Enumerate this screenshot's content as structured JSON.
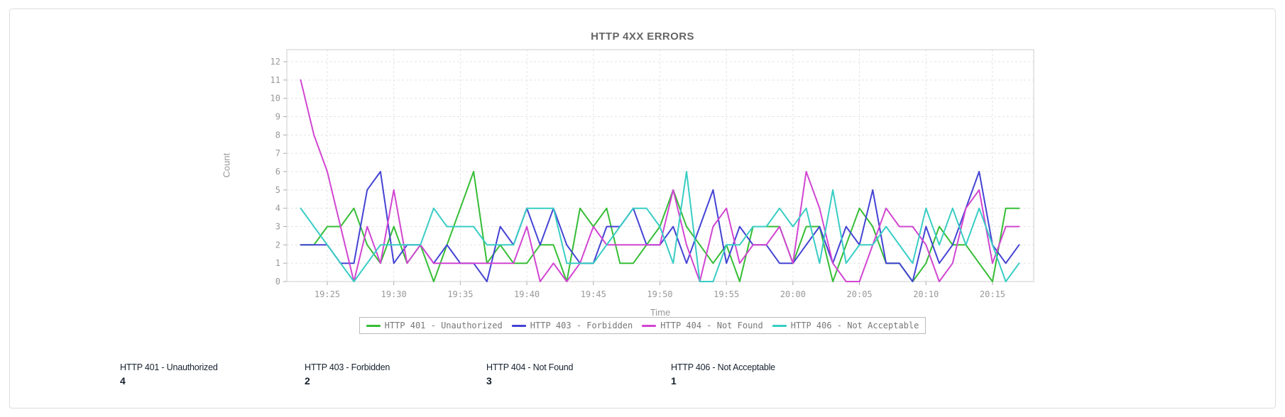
{
  "card": {
    "title": "HTTP 4XX ERRORS"
  },
  "chart_data": {
    "type": "line",
    "title": "HTTP 4XX ERRORS",
    "xlabel": "Time",
    "ylabel": "Count",
    "ylim": [
      0,
      12
    ],
    "grid": true,
    "legend_position": "bottom",
    "y_ticks": [
      0,
      1,
      2,
      3,
      4,
      5,
      6,
      7,
      8,
      9,
      10,
      11,
      12
    ],
    "x_ticks": [
      "19:25",
      "19:30",
      "19:35",
      "19:40",
      "19:45",
      "19:50",
      "19:55",
      "20:00",
      "20:05",
      "20:10",
      "20:15"
    ],
    "x": [
      "19:23",
      "19:24",
      "19:25",
      "19:26",
      "19:27",
      "19:28",
      "19:29",
      "19:30",
      "19:31",
      "19:32",
      "19:33",
      "19:34",
      "19:35",
      "19:36",
      "19:37",
      "19:38",
      "19:39",
      "19:40",
      "19:41",
      "19:42",
      "19:43",
      "19:44",
      "19:45",
      "19:46",
      "19:47",
      "19:48",
      "19:49",
      "19:50",
      "19:51",
      "19:52",
      "19:53",
      "19:54",
      "19:55",
      "19:56",
      "19:57",
      "19:58",
      "19:59",
      "20:00",
      "20:01",
      "20:02",
      "20:03",
      "20:04",
      "20:05",
      "20:06",
      "20:07",
      "20:08",
      "20:09",
      "20:10",
      "20:11",
      "20:12",
      "20:13",
      "20:14",
      "20:15",
      "20:16",
      "20:17"
    ],
    "series": [
      {
        "name": "HTTP 401 - Unauthorized",
        "color": "#35bd35",
        "values": [
          2,
          2,
          3,
          3,
          4,
          2,
          1,
          3,
          1,
          2,
          0,
          2,
          4,
          6,
          1,
          2,
          1,
          1,
          2,
          2,
          0,
          4,
          3,
          4,
          1,
          1,
          2,
          3,
          5,
          3,
          2,
          1,
          2,
          0,
          3,
          3,
          3,
          1,
          3,
          3,
          0,
          2,
          4,
          3,
          1,
          1,
          0,
          1,
          3,
          2,
          2,
          1,
          0,
          4,
          4
        ]
      },
      {
        "name": "HTTP 403 - Forbidden",
        "color": "#4343d4",
        "values": [
          2,
          2,
          2,
          1,
          1,
          5,
          6,
          1,
          2,
          2,
          1,
          2,
          1,
          1,
          0,
          3,
          2,
          4,
          2,
          4,
          2,
          1,
          1,
          3,
          3,
          4,
          2,
          2,
          3,
          1,
          3,
          5,
          1,
          3,
          2,
          2,
          1,
          1,
          2,
          3,
          1,
          3,
          2,
          5,
          1,
          1,
          0,
          3,
          1,
          2,
          4,
          6,
          2,
          1,
          2
        ]
      },
      {
        "name": "HTTP 404 - Not Found",
        "color": "#d145d1",
        "values": [
          11,
          8,
          6,
          3,
          0,
          3,
          1,
          5,
          1,
          2,
          1,
          1,
          1,
          1,
          1,
          1,
          1,
          3,
          0,
          1,
          0,
          1,
          3,
          2,
          2,
          2,
          2,
          2,
          5,
          2,
          0,
          3,
          4,
          1,
          2,
          2,
          3,
          1,
          6,
          4,
          1,
          0,
          0,
          2,
          4,
          3,
          3,
          2,
          0,
          1,
          4,
          5,
          1,
          3,
          3
        ]
      },
      {
        "name": "HTTP 406 - Not Acceptable",
        "color": "#38cdc4",
        "values": [
          4,
          3,
          2,
          1,
          0,
          1,
          2,
          2,
          2,
          2,
          4,
          3,
          3,
          3,
          2,
          2,
          2,
          4,
          4,
          4,
          1,
          1,
          1,
          2,
          3,
          4,
          4,
          3,
          1,
          6,
          0,
          0,
          2,
          2,
          3,
          3,
          4,
          3,
          4,
          1,
          5,
          1,
          2,
          2,
          3,
          2,
          1,
          4,
          2,
          4,
          2,
          4,
          2,
          0,
          1
        ]
      }
    ]
  },
  "summary": {
    "items": [
      {
        "label": "HTTP 401 - Unauthorized",
        "value": "4"
      },
      {
        "label": "HTTP 403 - Forbidden",
        "value": "2"
      },
      {
        "label": "HTTP 404 - Not Found",
        "value": "3"
      },
      {
        "label": "HTTP 406 - Not Acceptable",
        "value": "1"
      }
    ]
  },
  "colors": {
    "card_border": "#dddddd",
    "plot_border": "#cccccc",
    "gridline": "#e3e3e3",
    "axis_text": "#999999",
    "title_text": "#666666",
    "legend_text": "#777777",
    "summary_text": "#16212e"
  }
}
